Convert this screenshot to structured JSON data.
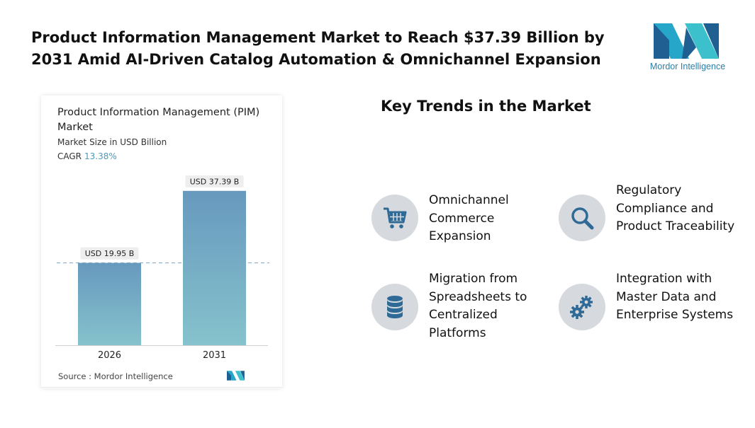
{
  "headline": "Product Information Management Market to Reach $37.39 Billion by 2031 Amid AI-Driven Catalog Automation & Omnichannel Expansion",
  "logo": {
    "name": "Mordor Intelligence",
    "word1": "Mordor",
    "word2": "Intelligence"
  },
  "chart": {
    "title": "Product Information Management (PIM) Market",
    "subtitle": "Market Size in USD Billion",
    "cagr_label": "CAGR",
    "cagr_value": "13.38%",
    "source": "Source : Mordor Intelligence"
  },
  "chart_data": {
    "type": "bar",
    "title": "Product Information Management (PIM) Market",
    "subtitle": "Market Size in USD Billion",
    "categories": [
      "2026",
      "2031"
    ],
    "values": [
      19.95,
      37.39
    ],
    "value_labels": [
      "USD 19.95 B",
      "USD 37.39 B"
    ],
    "unit": "USD Billion",
    "cagr": "13.38%",
    "ylim": [
      0,
      42.5
    ],
    "reference_line_value": 19.95,
    "grid": false,
    "legend": "none",
    "colors": {
      "bar_top": "#6799be",
      "bar_bottom": "#86c2cc",
      "ref_line": "#89aecb",
      "label_bg": "#eeeeee"
    }
  },
  "trends": {
    "title": "Key Trends in the Market",
    "items": [
      {
        "label": "Omnichannel Commerce Expansion",
        "icon": "shopping-cart-icon"
      },
      {
        "label": "Regulatory Compliance and Product Traceability",
        "icon": "magnifier-icon"
      },
      {
        "label": "Migration from Spreadsheets to Centralized Platforms",
        "icon": "database-icon"
      },
      {
        "label": "Integration with Master Data and Enterprise Systems",
        "icon": "gears-icon"
      }
    ],
    "icon_bg": "#d6d9dd",
    "icon_color": "#2f6a97"
  }
}
